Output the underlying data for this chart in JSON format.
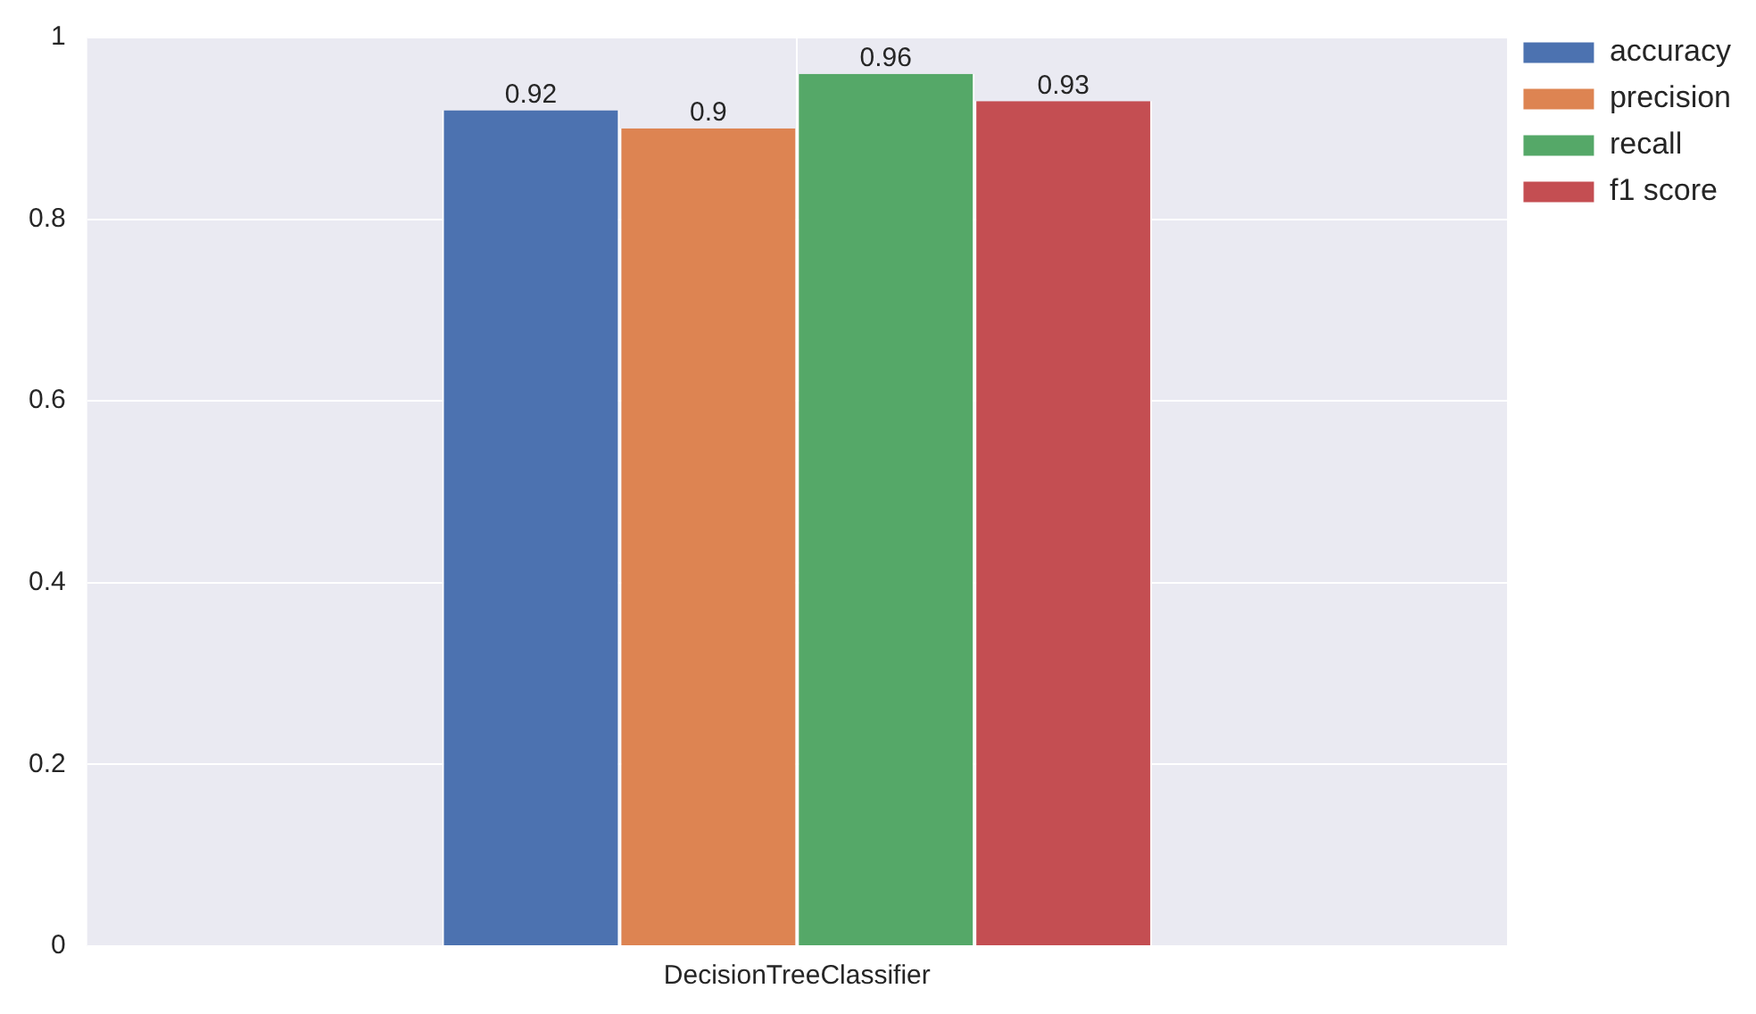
{
  "chart_data": {
    "type": "bar",
    "categories": [
      "DecisionTreeClassifier"
    ],
    "series": [
      {
        "name": "accuracy",
        "color": "#4c72b0",
        "values": [
          0.92
        ]
      },
      {
        "name": "precision",
        "color": "#dd8452",
        "values": [
          0.9
        ]
      },
      {
        "name": "recall",
        "color": "#55a868",
        "values": [
          0.96
        ]
      },
      {
        "name": "f1 score",
        "color": "#c44e52",
        "values": [
          0.93
        ]
      }
    ],
    "ylim": [
      0,
      1
    ],
    "yticks": [
      0,
      0.2,
      0.4,
      0.6,
      0.8,
      1
    ],
    "grid": true,
    "legend": "top right",
    "data_labels": true
  }
}
